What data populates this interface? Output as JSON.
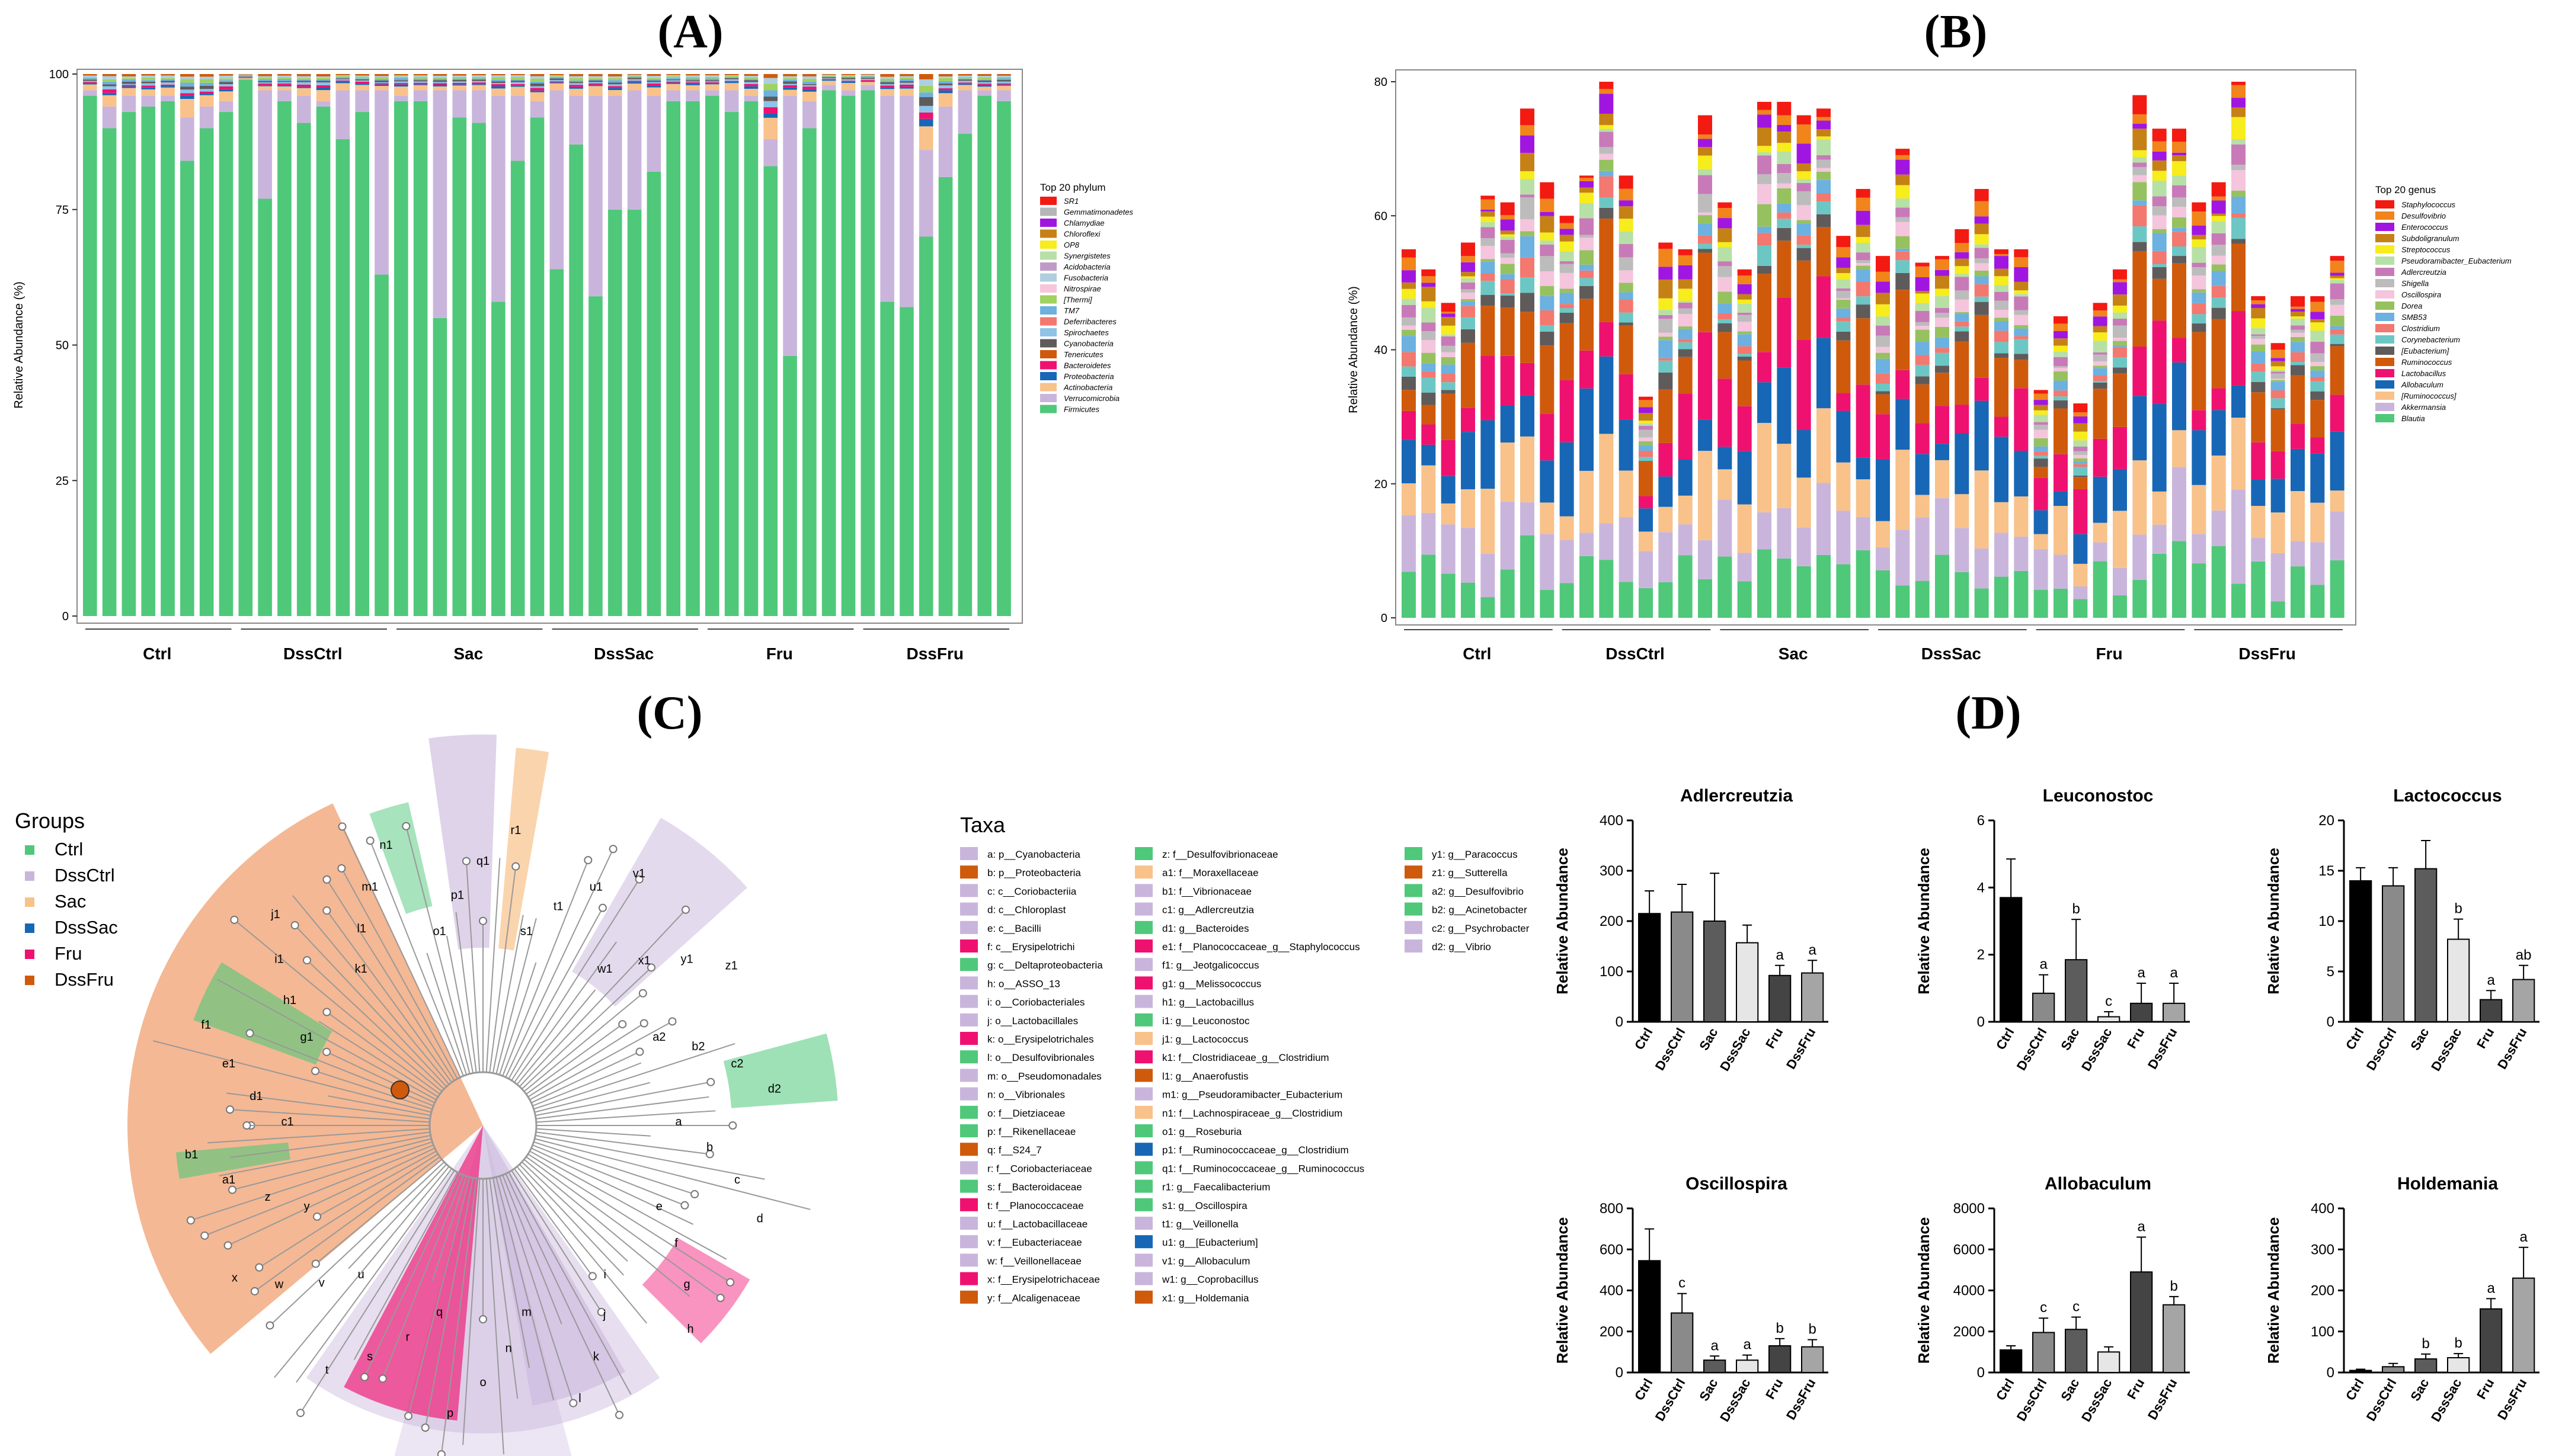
{
  "panels": {
    "A": "(A)",
    "B": "(B)",
    "C": "(C)",
    "D": "(D)"
  },
  "colors": {
    "phylum": [
      "#f31a12",
      "#b4b6b8",
      "#a016e0",
      "#c58116",
      "#f7ec1c",
      "#b7e0a6",
      "#bf9cc8",
      "#aecfe0",
      "#f7c5d9",
      "#a0d25f",
      "#6cb1df",
      "#f27870",
      "#8fc3e8",
      "#5f5b5b",
      "#d05a0c",
      "#ef1170",
      "#1767b6",
      "#f8c28a",
      "#c9b5dc",
      "#4fc87a"
    ],
    "genus": [
      "#f31a12",
      "#f1841b",
      "#a016e0",
      "#c58116",
      "#f7ec1c",
      "#b7e0a6",
      "#c87ab8",
      "#bcbcbc",
      "#f4c5dc",
      "#96c15f",
      "#6cb1df",
      "#f27870",
      "#6cc7c4",
      "#5f5b5b",
      "#d05a0c",
      "#ef1170",
      "#1767b6",
      "#f8c28a",
      "#c9b5dc",
      "#4fc87a"
    ],
    "ctrl": "#4fc87a",
    "dssctrl": "#c9b5dc",
    "sac": "#f8c28a",
    "dsssac": "#1767b6",
    "fru": "#ef1170",
    "dssfru": "#d05a0c"
  },
  "chart_data": [
    {
      "id": "A",
      "type": "bar",
      "stacked": true,
      "ylabel": "Relative Abundance (%)",
      "ylim": [
        0,
        100
      ],
      "yticks": [
        "0",
        "25",
        "50",
        "75",
        "100"
      ],
      "groups": [
        "Ctrl",
        "DssCtrl",
        "Sac",
        "DssSac",
        "Fru",
        "DssFru"
      ],
      "samples_per_group": 8,
      "legend_title": "Top 20 phylum",
      "legend": [
        "SR1",
        "Gemmatimonadetes",
        "Chlamydiae",
        "Chloroflexi",
        "OP8",
        "Synergistetes",
        "Acidobacteria",
        "Fusobacteria",
        "Nitrospirae",
        "[Thermi]",
        "TM7",
        "Deferribacteres",
        "Spirochaetes",
        "Cyanobacteria",
        "Tenericutes",
        "Bacteroidetes",
        "Proteobacteria",
        "Actinobacteria",
        "Verrucomicrobia",
        "Firmicutes"
      ],
      "firmicutes": [
        96,
        90,
        93,
        94,
        95,
        84,
        90,
        93,
        99,
        77,
        95,
        91,
        94,
        88,
        93,
        63,
        95,
        95,
        55,
        92,
        91,
        58,
        84,
        92,
        64,
        87,
        59,
        75,
        75,
        82,
        95,
        95,
        96,
        93,
        95,
        83,
        48,
        90,
        97,
        96,
        97,
        58,
        57,
        70,
        81,
        89,
        96,
        95
      ],
      "verrucomicrobia": [
        1,
        4,
        3,
        2,
        1,
        8,
        4,
        2,
        0,
        20,
        2,
        5,
        1,
        9,
        4,
        34,
        1,
        2,
        42,
        5,
        6,
        38,
        12,
        3,
        33,
        9,
        37,
        21,
        22,
        14,
        2,
        2,
        1,
        4,
        1,
        5,
        48,
        5,
        1,
        1,
        1,
        38,
        39,
        16,
        13,
        8,
        1,
        2
      ]
    },
    {
      "id": "B",
      "type": "bar",
      "stacked": true,
      "ylabel": "Relative Abundance (%)",
      "ylim": [
        0,
        80
      ],
      "yticks": [
        "0",
        "20",
        "40",
        "60",
        "80"
      ],
      "groups": [
        "Ctrl",
        "DssCtrl",
        "Sac",
        "DssSac",
        "Fru",
        "DssFru"
      ],
      "legend_title": "Top 20 genus",
      "legend": [
        "Staphylococcus",
        "Desulfovibrio",
        "Enterococcus",
        "Subdoligranulum",
        "Streptococcus",
        "Pseudoramibacter_Eubacterium",
        "Adlercreutzia",
        "Shigella",
        "Oscillospira",
        "Dorea",
        "SMB53",
        "Clostridium",
        "Corynebacterium",
        "[Eubacterium]",
        "Ruminococcus",
        "Lactobacillus",
        "Allobaculum",
        "[Ruminococcus]",
        "Akkermansia",
        "Blautia"
      ],
      "totals": [
        55,
        52,
        47,
        56,
        63,
        62,
        76,
        65,
        60,
        66,
        80,
        66,
        33,
        56,
        55,
        75,
        62,
        52,
        77,
        77,
        75,
        76,
        57,
        64,
        54,
        70,
        53,
        54,
        58,
        64,
        55,
        55,
        34,
        45,
        32,
        47,
        52,
        78,
        73,
        73,
        62,
        65,
        80,
        48,
        41,
        48,
        48,
        54
      ]
    },
    {
      "id": "D",
      "type": "bar",
      "panels": [
        {
          "title": "Adlercreutzia",
          "ylabel": "Relative Abundance",
          "yticks": [
            "0",
            "100",
            "200",
            "300",
            "400"
          ],
          "ymax": 400,
          "categories": [
            "Ctrl",
            "DssCtrl",
            "Sac",
            "DssSac",
            "Fru",
            "DssFru"
          ],
          "values": [
            215,
            218,
            200,
            157,
            92,
            97
          ],
          "errors": [
            45,
            55,
            95,
            35,
            20,
            25
          ],
          "letters": [
            "",
            "",
            "",
            "",
            "a",
            "a"
          ]
        },
        {
          "title": "Leuconostoc",
          "ylabel": "Relative Abundance",
          "yticks": [
            "0",
            "2",
            "4",
            "6"
          ],
          "ymax": 6,
          "categories": [
            "Ctrl",
            "DssCtrl",
            "Sac",
            "DssSac",
            "Fru",
            "DssFru"
          ],
          "values": [
            3.7,
            0.85,
            1.85,
            0.15,
            0.55,
            0.55
          ],
          "errors": [
            1.15,
            0.55,
            1.2,
            0.15,
            0.6,
            0.6
          ],
          "letters": [
            "",
            "a",
            "b",
            "c",
            "a",
            "a"
          ]
        },
        {
          "title": "Lactococcus",
          "ylabel": "Relative Abundance",
          "yticks": [
            "0",
            "5",
            "10",
            "15",
            "20"
          ],
          "ymax": 20,
          "categories": [
            "Ctrl",
            "DssCtrl",
            "Sac",
            "DssSac",
            "Fru",
            "DssFru"
          ],
          "values": [
            14,
            13.5,
            15.2,
            8.2,
            2.2,
            4.2
          ],
          "errors": [
            1.3,
            1.8,
            2.8,
            2,
            0.9,
            1.4
          ],
          "letters": [
            "",
            "",
            "",
            "b",
            "a",
            "ab"
          ]
        },
        {
          "title": "Oscillospira",
          "ylabel": "Relative Abundance",
          "yticks": [
            "0",
            "200",
            "400",
            "600",
            "800"
          ],
          "ymax": 800,
          "categories": [
            "Ctrl",
            "DssCtrl",
            "Sac",
            "DssSac",
            "Fru",
            "DssFru"
          ],
          "values": [
            545,
            290,
            60,
            60,
            130,
            125
          ],
          "errors": [
            155,
            95,
            20,
            25,
            35,
            35
          ],
          "letters": [
            "",
            "c",
            "a",
            "a",
            "b",
            "b"
          ]
        },
        {
          "title": "Allobaculum",
          "ylabel": "Relative Abundance",
          "yticks": [
            "0",
            "2000",
            "4000",
            "6000",
            "8000"
          ],
          "ymax": 8000,
          "categories": [
            "Ctrl",
            "DssCtrl",
            "Sac",
            "DssSac",
            "Fru",
            "DssFru"
          ],
          "values": [
            1100,
            1950,
            2100,
            1000,
            4900,
            3300
          ],
          "errors": [
            200,
            700,
            600,
            250,
            1700,
            400
          ],
          "letters": [
            "",
            "c",
            "c",
            "",
            "a",
            "b"
          ]
        },
        {
          "title": "Holdemania",
          "ylabel": "Relative Abundance",
          "yticks": [
            "0",
            "100",
            "200",
            "300",
            "400"
          ],
          "ymax": 400,
          "categories": [
            "Ctrl",
            "DssCtrl",
            "Sac",
            "DssSac",
            "Fru",
            "DssFru"
          ],
          "values": [
            5,
            14,
            33,
            36,
            155,
            230
          ],
          "errors": [
            3,
            8,
            12,
            10,
            25,
            75
          ],
          "letters": [
            "",
            "",
            "b",
            "b",
            "a",
            "a"
          ]
        }
      ]
    }
  ],
  "cladogram": {
    "groups_title": "Groups",
    "groups": [
      "Ctrl",
      "DssCtrl",
      "Sac",
      "DssSac",
      "Fru",
      "DssFru"
    ],
    "taxa_title": "Taxa",
    "taxa": [
      [
        "a: p__Cyanobacteria",
        "#c9b5dc"
      ],
      [
        "b: p__Proteobacteria",
        "#d05a0c"
      ],
      [
        "c: c__Coriobacteriia",
        "#c9b5dc"
      ],
      [
        "d: c__Chloroplast",
        "#c9b5dc"
      ],
      [
        "e: c__Bacilli",
        "#c9b5dc"
      ],
      [
        "f: c__Erysipelotrichi",
        "#ef1170"
      ],
      [
        "g: c__Deltaproteobacteria",
        "#4fc87a"
      ],
      [
        "h: o__ASSO_13",
        "#c9b5dc"
      ],
      [
        "i: o__Coriobacteriales",
        "#c9b5dc"
      ],
      [
        "j: o__Lactobacillales",
        "#c9b5dc"
      ],
      [
        "k: o__Erysipelotrichales",
        "#ef1170"
      ],
      [
        "l: o__Desulfovibrionales",
        "#4fc87a"
      ],
      [
        "m: o__Pseudomonadales",
        "#c9b5dc"
      ],
      [
        "n: o__Vibrionales",
        "#c9b5dc"
      ],
      [
        "o: f__Dietziaceae",
        "#4fc87a"
      ],
      [
        "p: f__Rikenellaceae",
        "#4fc87a"
      ],
      [
        "q: f__S24_7",
        "#d05a0c"
      ],
      [
        "r: f__Coriobacteriaceae",
        "#c9b5dc"
      ],
      [
        "s: f__Bacteroidaceae",
        "#4fc87a"
      ],
      [
        "t: f__Planococcaceae",
        "#ef1170"
      ],
      [
        "u: f__Lactobacillaceae",
        "#c9b5dc"
      ],
      [
        "v: f__Eubacteriaceae",
        "#c9b5dc"
      ],
      [
        "w: f__Veillonellaceae",
        "#c9b5dc"
      ],
      [
        "x: f__Erysipelotrichaceae",
        "#ef1170"
      ],
      [
        "y: f__Alcaligenaceae",
        "#d05a0c"
      ],
      [
        "z: f__Desulfovibrionaceae",
        "#4fc87a"
      ],
      [
        "a1: f__Moraxellaceae",
        "#f8c28a"
      ],
      [
        "b1: f__Vibrionaceae",
        "#c9b5dc"
      ],
      [
        "c1: g__Adlercreutzia",
        "#c9b5dc"
      ],
      [
        "d1: g__Bacteroides",
        "#4fc87a"
      ],
      [
        "e1: f__Planococcaceae_g__Staphylococcus",
        "#ef1170"
      ],
      [
        "f1: g__Jeotgalicoccus",
        "#c9b5dc"
      ],
      [
        "g1: g__Melissococcus",
        "#ef1170"
      ],
      [
        "h1: g__Lactobacillus",
        "#c9b5dc"
      ],
      [
        "i1: g__Leuconostoc",
        "#4fc87a"
      ],
      [
        "j1: g__Lactococcus",
        "#f8c28a"
      ],
      [
        "k1: f__Clostridiaceae_g__Clostridium",
        "#ef1170"
      ],
      [
        "l1: g__Anaerofustis",
        "#d05a0c"
      ],
      [
        "m1: g__Pseudoramibacter_Eubacterium",
        "#c9b5dc"
      ],
      [
        "n1: f__Lachnospiraceae_g__Clostridium",
        "#f8c28a"
      ],
      [
        "o1: g__Roseburia",
        "#4fc87a"
      ],
      [
        "p1: f__Ruminococcaceae_g__Clostridium",
        "#1767b6"
      ],
      [
        "q1: f__Ruminococcaceae_g__Ruminococcus",
        "#4fc87a"
      ],
      [
        "r1: g__Faecalibacterium",
        "#4fc87a"
      ],
      [
        "s1: g__Oscillospira",
        "#4fc87a"
      ],
      [
        "t1: g__Veillonella",
        "#c9b5dc"
      ],
      [
        "u1: g__[Eubacterium]",
        "#1767b6"
      ],
      [
        "v1: g__Allobaculum",
        "#c9b5dc"
      ],
      [
        "w1: g__Coprobacillus",
        "#c9b5dc"
      ],
      [
        "x1: g__Holdemania",
        "#d05a0c"
      ],
      [
        "y1: g__Paracoccus",
        "#4fc87a"
      ],
      [
        "z1: g__Sutterella",
        "#d05a0c"
      ],
      [
        "a2: g__Desulfovibrio",
        "#4fc87a"
      ],
      [
        "b2: g__Acinetobacter",
        "#4fc87a"
      ],
      [
        "c2: g__Psychrobacter",
        "#c9b5dc"
      ],
      [
        "d2: g__Vibrio",
        "#c9b5dc"
      ]
    ],
    "node_labels": [
      "a",
      "b",
      "c",
      "d",
      "e",
      "f",
      "g",
      "h",
      "i",
      "j",
      "k",
      "l",
      "m",
      "n",
      "o",
      "p",
      "q",
      "r",
      "s",
      "t",
      "u",
      "v",
      "w",
      "x",
      "y",
      "z",
      "a1",
      "b1",
      "c1",
      "d1",
      "e1",
      "f1",
      "g1",
      "h1",
      "i1",
      "j1",
      "k1",
      "l1",
      "m1",
      "n1",
      "o1",
      "p1",
      "q1",
      "r1",
      "s1",
      "t1",
      "u1",
      "v1",
      "w1",
      "x1",
      "y1",
      "z1",
      "a2",
      "b2",
      "c2",
      "d2"
    ]
  }
}
